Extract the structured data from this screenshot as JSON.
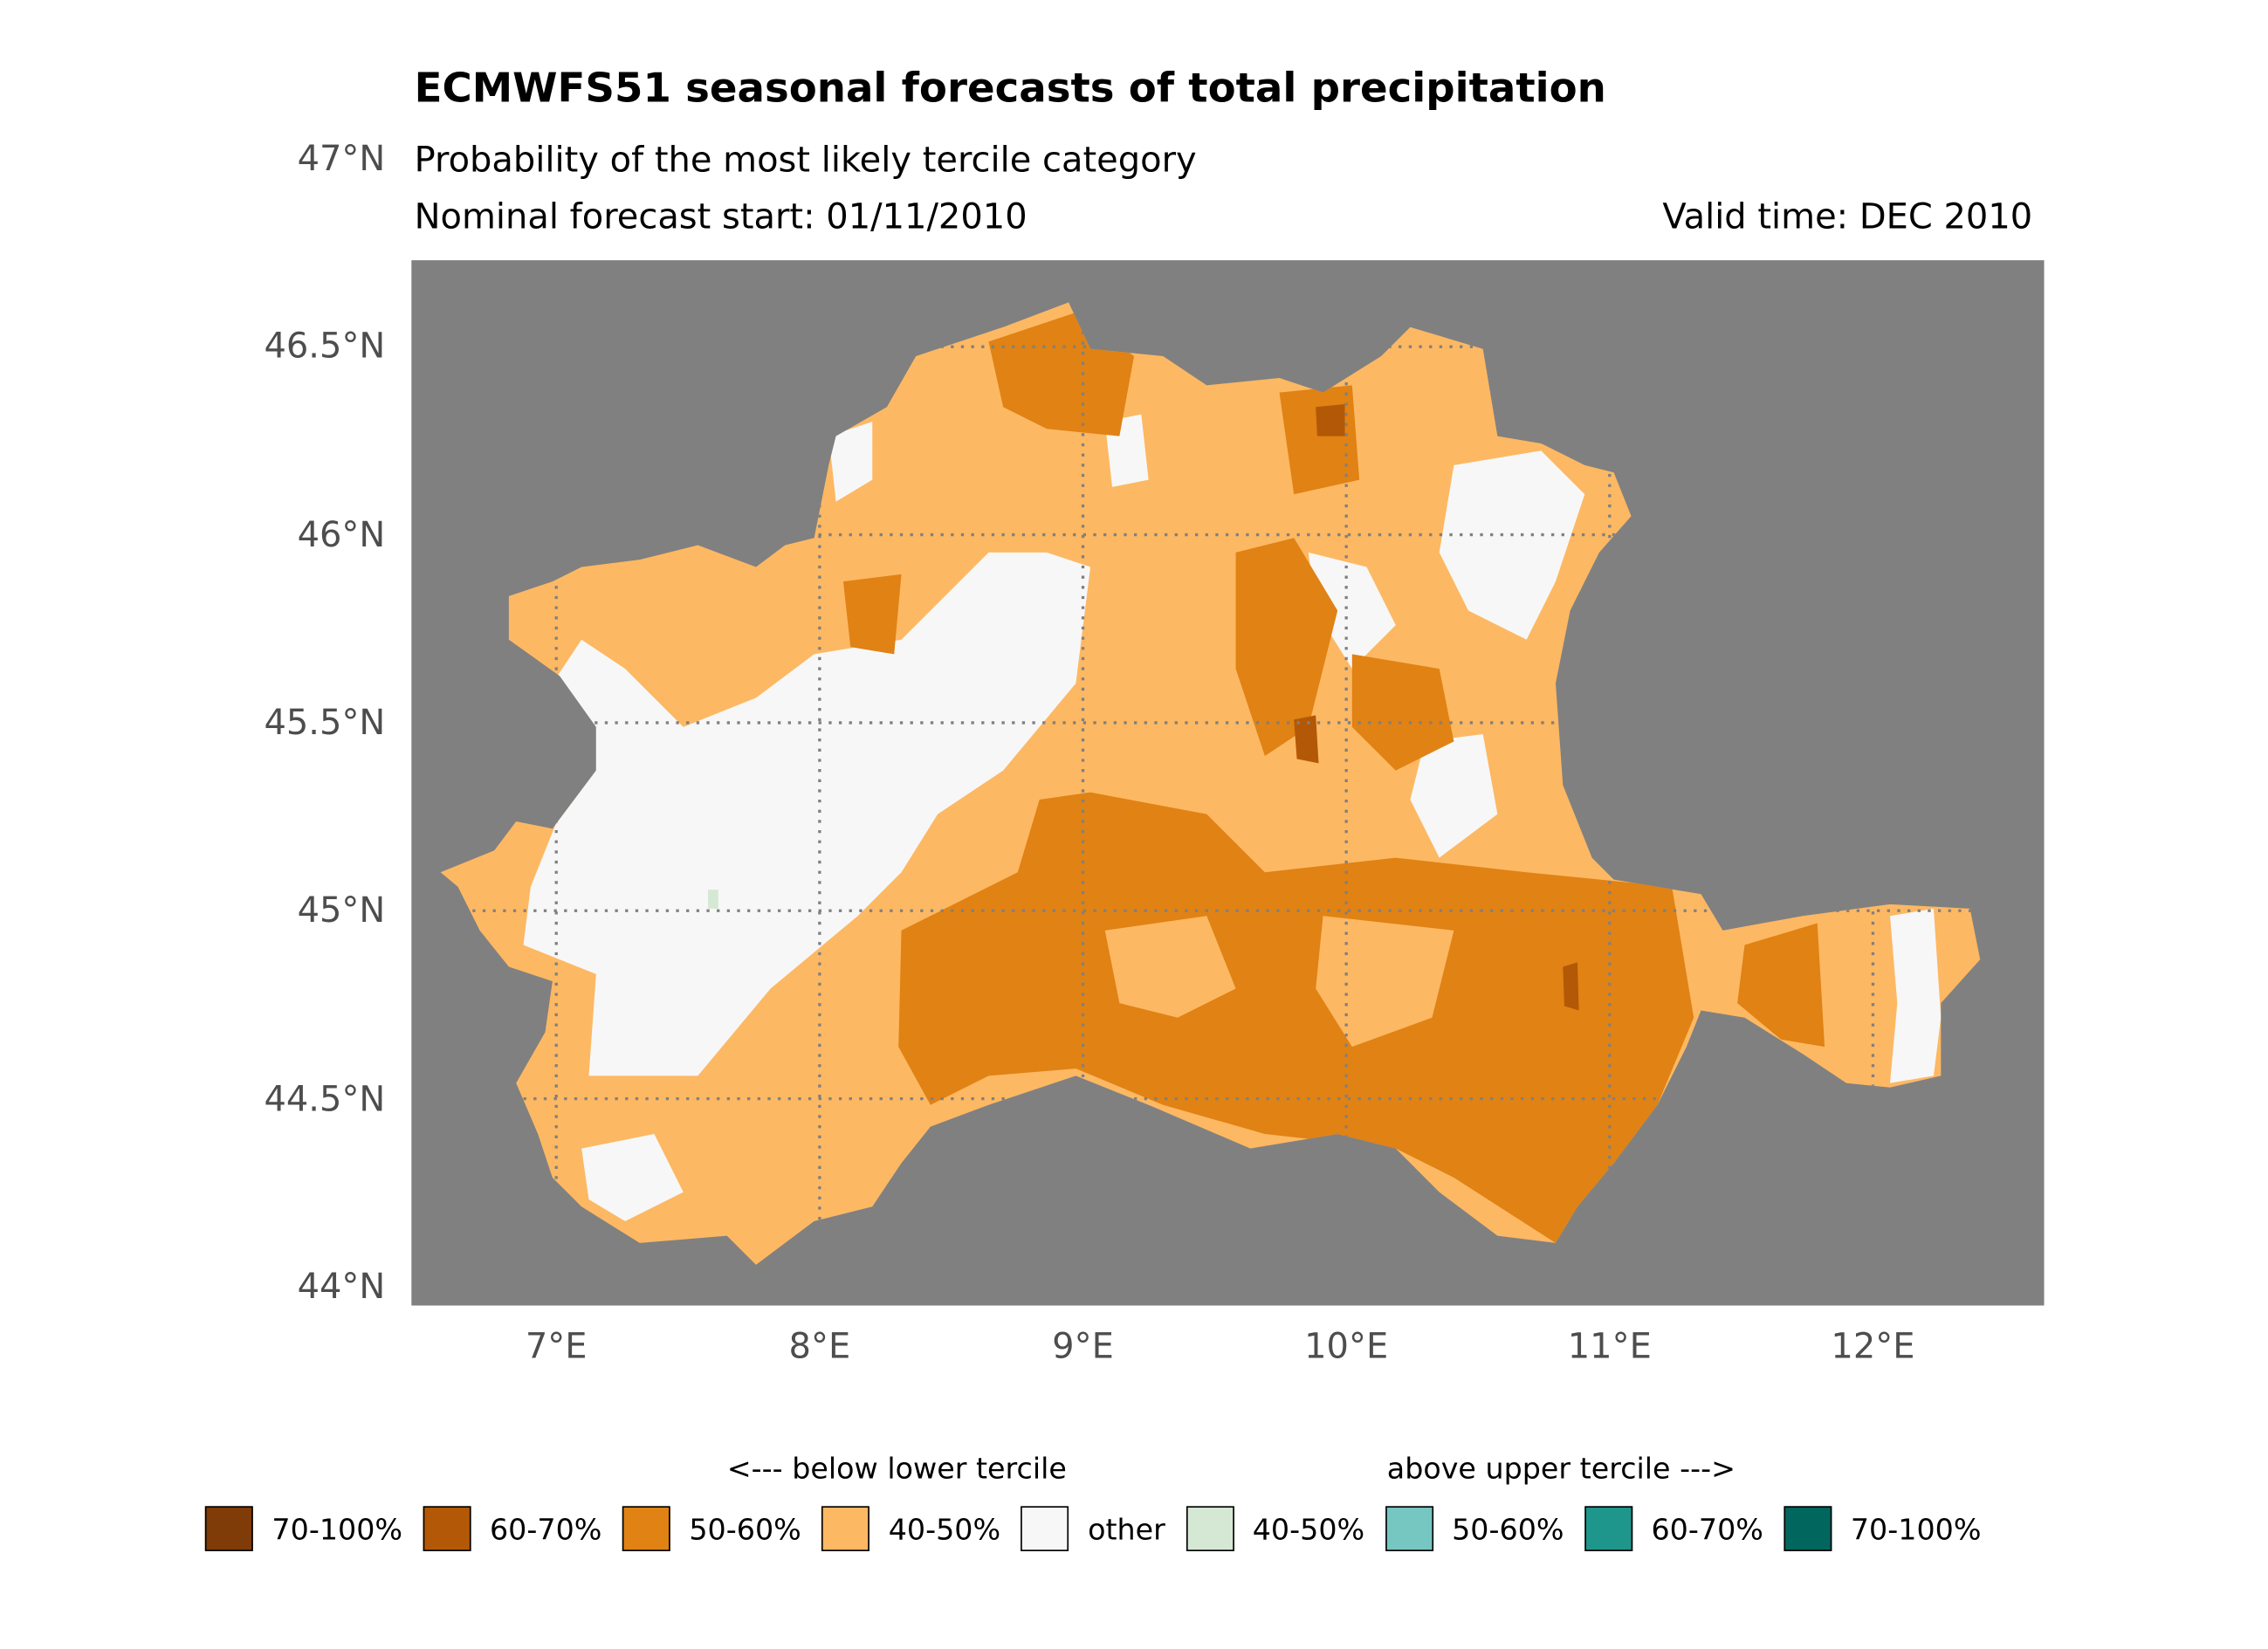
{
  "chart_data": {
    "type": "heatmap",
    "title": "ECMWFS51 seasonal forecasts of total precipitation",
    "subtitle": "Probability of the most likely tercile category",
    "forecast_start": "Nominal forecast start: 01/11/2010",
    "valid_time": "Valid time: DEC 2010",
    "xlabel": "",
    "ylabel": "",
    "xlim": [
      6.45,
      12.65
    ],
    "ylim": [
      43.95,
      46.73
    ],
    "x_ticks": [
      {
        "value": 7,
        "label": "7°E"
      },
      {
        "value": 8,
        "label": "8°E"
      },
      {
        "value": 9,
        "label": "9°E"
      },
      {
        "value": 10,
        "label": "10°E"
      },
      {
        "value": 11,
        "label": "11°E"
      },
      {
        "value": 12,
        "label": "12°E"
      }
    ],
    "y_ticks": [
      {
        "value": 44,
        "label": "44°N"
      },
      {
        "value": 44.5,
        "label": "44.5°N"
      },
      {
        "value": 45,
        "label": "45°N"
      },
      {
        "value": 45.5,
        "label": "45.5°N"
      },
      {
        "value": 46,
        "label": "46°N"
      },
      {
        "value": 46.5,
        "label": "46.5°N"
      },
      {
        "value": 47,
        "label": "47°N"
      }
    ],
    "background_color": "#808080",
    "grid": "dotted",
    "legend": {
      "placement": "bottom",
      "below_label": "<--- below lower tercile",
      "above_label": "above upper tercile --->",
      "items": [
        {
          "label": "70-100%",
          "color": "#7f3b08"
        },
        {
          "label": "60-70%",
          "color": "#b35806"
        },
        {
          "label": "50-60%",
          "color": "#e08214"
        },
        {
          "label": "40-50%",
          "color": "#fdb863"
        },
        {
          "label": "other",
          "color": "#f7f7f7"
        },
        {
          "label": "40-50%",
          "color": "#d5e8d4"
        },
        {
          "label": "50-60%",
          "color": "#76c6c1"
        },
        {
          "label": "60-70%",
          "color": "#1f968b"
        },
        {
          "label": "70-100%",
          "color": "#01665e"
        }
      ]
    }
  }
}
